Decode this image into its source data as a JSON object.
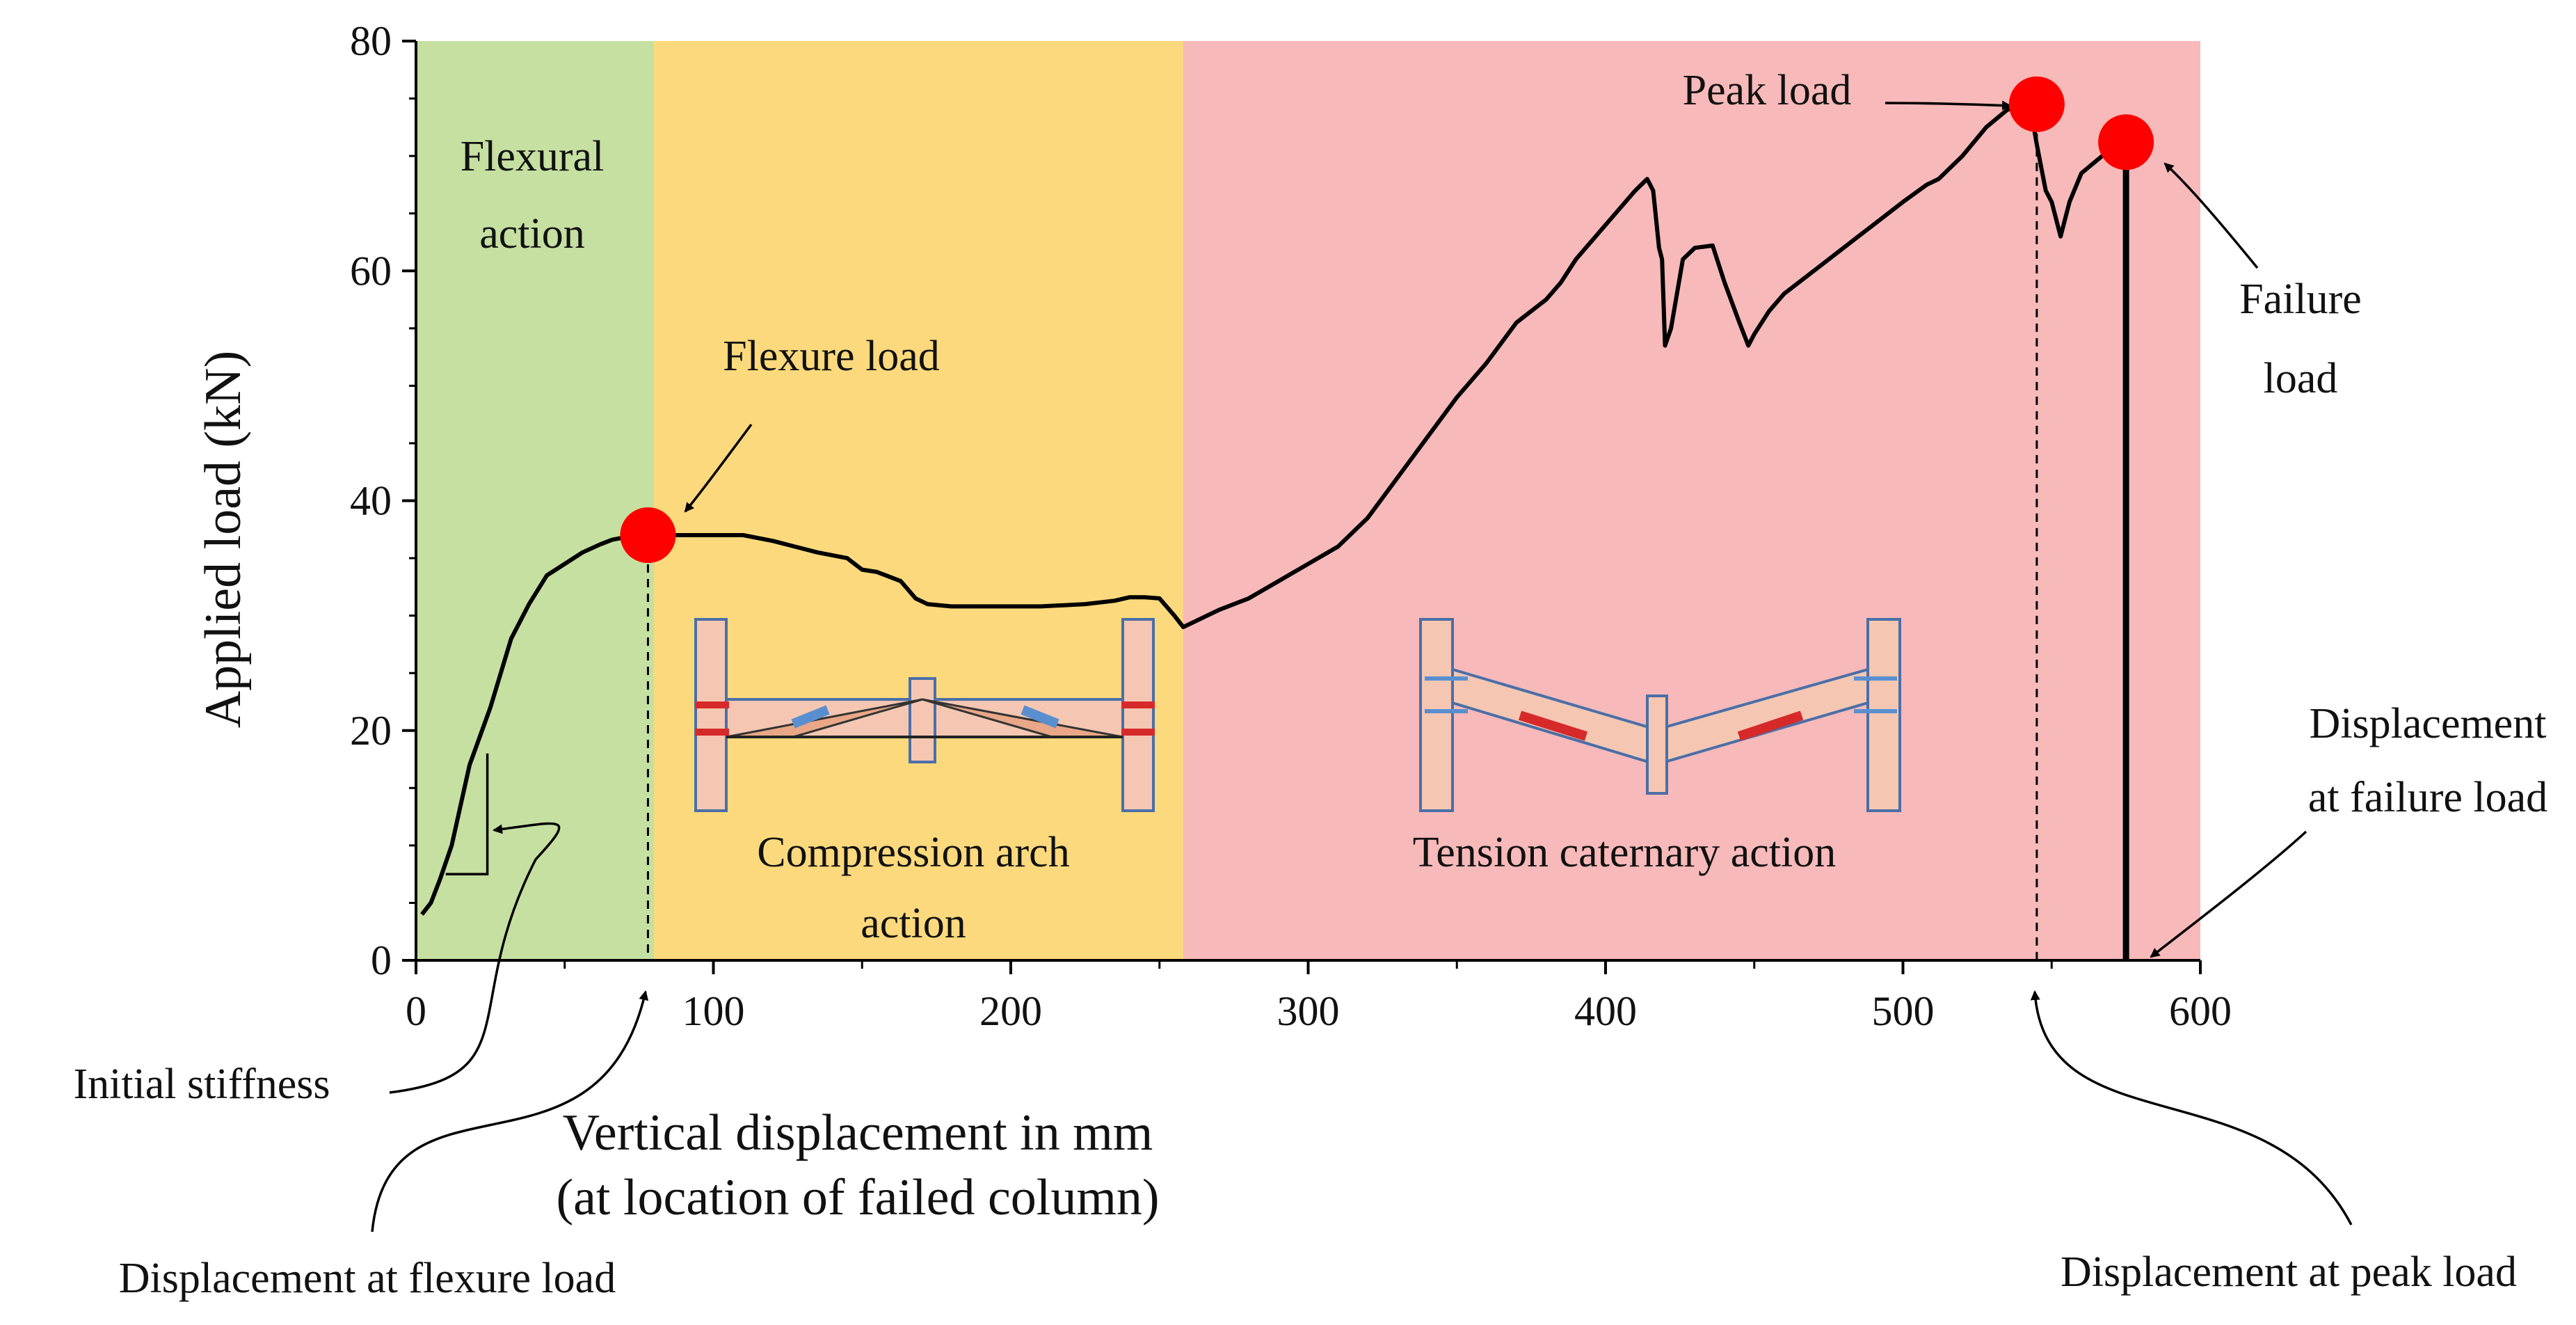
{
  "chart_data": {
    "type": "line",
    "xlabel": "Vertical displacement in mm",
    "xlabel_line2": "(at location of failed column)",
    "ylabel": "Applied load (kN)",
    "xlim": [
      0,
      600
    ],
    "ylim": [
      0,
      80
    ],
    "xticks": [
      0,
      100,
      200,
      300,
      400,
      500,
      600
    ],
    "yticks": [
      0,
      20,
      40,
      60,
      80
    ],
    "grid": false,
    "colors": {
      "line": "#000000",
      "marker": "#ff0000",
      "flexural": "#c5e0a0",
      "compression": "#fcd97c",
      "tension": "#f7b9b9",
      "member_fill": "#f5c7b2",
      "member_stroke": "#4a6fa8",
      "arrow_red": "#d62a2a",
      "arrow_blue": "#5a8fcf"
    },
    "regions": [
      {
        "name": "flexural",
        "label": [
          "Flexural",
          "action"
        ],
        "x": [
          0,
          80
        ]
      },
      {
        "name": "compression",
        "label": [
          "Compression  arch",
          "action"
        ],
        "x": [
          80,
          258
        ]
      },
      {
        "name": "tension",
        "label": [
          "Tension  caternary action"
        ],
        "x": [
          258,
          600
        ]
      }
    ],
    "series": [
      {
        "x": [
          2,
          5,
          8,
          12,
          18,
          25,
          32,
          38,
          44,
          50,
          56,
          62,
          66,
          70,
          74,
          77,
          80,
          90,
          100,
          110,
          120,
          135,
          145,
          150,
          155,
          163,
          168,
          172,
          180,
          195,
          210,
          225,
          235,
          240,
          245,
          250,
          255,
          258,
          262,
          270,
          280,
          290,
          300,
          310,
          320,
          330,
          340,
          350,
          360,
          370,
          380,
          385,
          390,
          395,
          400,
          405,
          410,
          414,
          416,
          418,
          419,
          420,
          422,
          426,
          430,
          436,
          440,
          445,
          448,
          450,
          455,
          460,
          470,
          480,
          490,
          500,
          508,
          512,
          520,
          528,
          535,
          540,
          543,
          545,
          548,
          550,
          553,
          556,
          560,
          567,
          572,
          575
        ],
        "y": [
          4,
          5,
          7,
          10,
          17,
          22,
          28,
          31,
          33.5,
          34.5,
          35.5,
          36.2,
          36.6,
          36.8,
          37,
          37,
          37,
          37,
          37,
          37,
          36.5,
          35.5,
          35,
          34,
          33.8,
          33,
          31.5,
          31,
          30.8,
          30.8,
          30.8,
          31,
          31.3,
          31.6,
          31.6,
          31.5,
          30,
          29,
          29.5,
          30.5,
          31.5,
          33,
          34.5,
          36,
          38.5,
          42,
          45.5,
          49,
          52,
          55.5,
          57.5,
          59,
          61,
          62.5,
          64,
          65.5,
          67,
          68,
          67,
          62,
          61,
          53.5,
          55,
          61,
          62,
          62.2,
          59,
          55.5,
          53.5,
          54.5,
          56.5,
          58,
          60,
          62,
          64,
          66,
          67.5,
          68,
          70,
          72.5,
          74,
          74.5,
          74,
          71,
          67,
          66,
          63,
          66,
          68.5,
          70,
          71,
          71.2
        ]
      }
    ],
    "failure_drop": {
      "x": 575,
      "y_top": 71,
      "y_bottom": 0
    },
    "stiffness_triangle": {
      "x": [
        10,
        24
      ],
      "y": [
        7.5,
        18
      ]
    },
    "points": [
      {
        "name": "flexure",
        "label": "Flexure load",
        "x": 78,
        "y": 37
      },
      {
        "name": "peak",
        "label": "Peak load",
        "x": 545,
        "y": 74.5
      },
      {
        "name": "failure",
        "label": [
          "Failure",
          "load"
        ],
        "x": 575,
        "y": 71.2
      }
    ],
    "annotations": [
      {
        "name": "initial-stiffness",
        "text": [
          "Initial stiffness"
        ]
      },
      {
        "name": "disp-flexure",
        "text": [
          "Displacement  at flexure load"
        ]
      },
      {
        "name": "disp-peak",
        "text": [
          "Displacement  at peak load"
        ]
      },
      {
        "name": "disp-failure",
        "text": [
          "Displacement",
          "at failure load"
        ]
      }
    ]
  }
}
